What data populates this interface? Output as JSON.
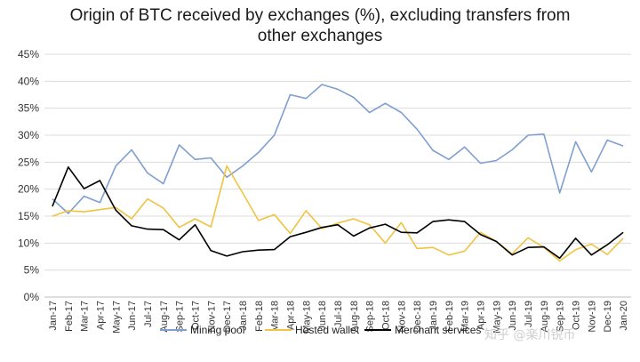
{
  "chart_data": {
    "type": "line",
    "title_lines": [
      "Origin of BTC received by exchanges (%), excluding transfers from",
      "other exchanges"
    ],
    "xlabel": "",
    "ylabel": "",
    "ylim": [
      0,
      45
    ],
    "y_ticks": [
      "0%",
      "5%",
      "10%",
      "15%",
      "20%",
      "25%",
      "30%",
      "35%",
      "40%",
      "45%"
    ],
    "y_tick_values": [
      0,
      5,
      10,
      15,
      20,
      25,
      30,
      35,
      40,
      45
    ],
    "grid": "horizontal",
    "legend_position": "bottom",
    "categories": [
      "Jan-17",
      "Feb-17",
      "Mar-17",
      "Apr-17",
      "May-17",
      "Jun-17",
      "Jul-17",
      "Aug-17",
      "Sep-17",
      "Oct-17",
      "Nov-17",
      "Dec-17",
      "Jan-18",
      "Feb-18",
      "Mar-18",
      "Apr-18",
      "May-18",
      "Jun-18",
      "Jul-18",
      "Aug-18",
      "Sep-18",
      "Oct-18",
      "Nov-18",
      "Dec-18",
      "Jan-19",
      "Feb-19",
      "Mar-19",
      "Apr-19",
      "May-19",
      "Jun-19",
      "Jul-19",
      "Aug-19",
      "Sep-19",
      "Oct-19",
      "Nov-19",
      "Dec-19",
      "Jan-20"
    ],
    "series": [
      {
        "name": "Mining pool",
        "color": "#7f9fd0",
        "values": [
          18.2,
          15.5,
          18.7,
          17.5,
          24.3,
          27.3,
          23.0,
          21.0,
          28.2,
          25.5,
          25.8,
          22.2,
          24.3,
          26.8,
          30.0,
          37.5,
          36.8,
          39.4,
          38.5,
          37.0,
          34.2,
          35.9,
          34.2,
          31.1,
          27.2,
          25.5,
          27.8,
          24.8,
          25.3,
          27.3,
          30.0,
          30.2,
          19.3,
          28.8,
          23.2,
          29.1,
          28.0
        ]
      },
      {
        "name": "Hosted wallet",
        "color": "#f0c341",
        "values": [
          15.0,
          16.0,
          15.8,
          16.2,
          16.6,
          14.5,
          18.2,
          16.5,
          12.9,
          14.5,
          13.0,
          24.3,
          19.3,
          14.2,
          15.3,
          11.8,
          16.0,
          12.7,
          13.7,
          14.5,
          13.4,
          10.0,
          13.8,
          9.0,
          9.2,
          7.8,
          8.5,
          12.0,
          10.3,
          8.0,
          11.0,
          9.2,
          6.7,
          8.8,
          9.8,
          7.9,
          10.9
        ]
      },
      {
        "name": "Merchant services",
        "color": "#000000",
        "values": [
          16.8,
          24.1,
          20.1,
          21.6,
          16.1,
          13.2,
          12.6,
          12.5,
          10.6,
          13.4,
          8.6,
          7.6,
          8.4,
          8.7,
          8.8,
          11.2,
          12.0,
          12.9,
          13.4,
          11.3,
          12.8,
          13.5,
          12.0,
          11.9,
          14.0,
          14.3,
          14.0,
          11.6,
          10.3,
          7.8,
          9.2,
          9.3,
          7.2,
          10.9,
          7.8,
          9.7,
          12.0
        ]
      }
    ]
  },
  "watermark_text": "知乎 @楽川锐币"
}
